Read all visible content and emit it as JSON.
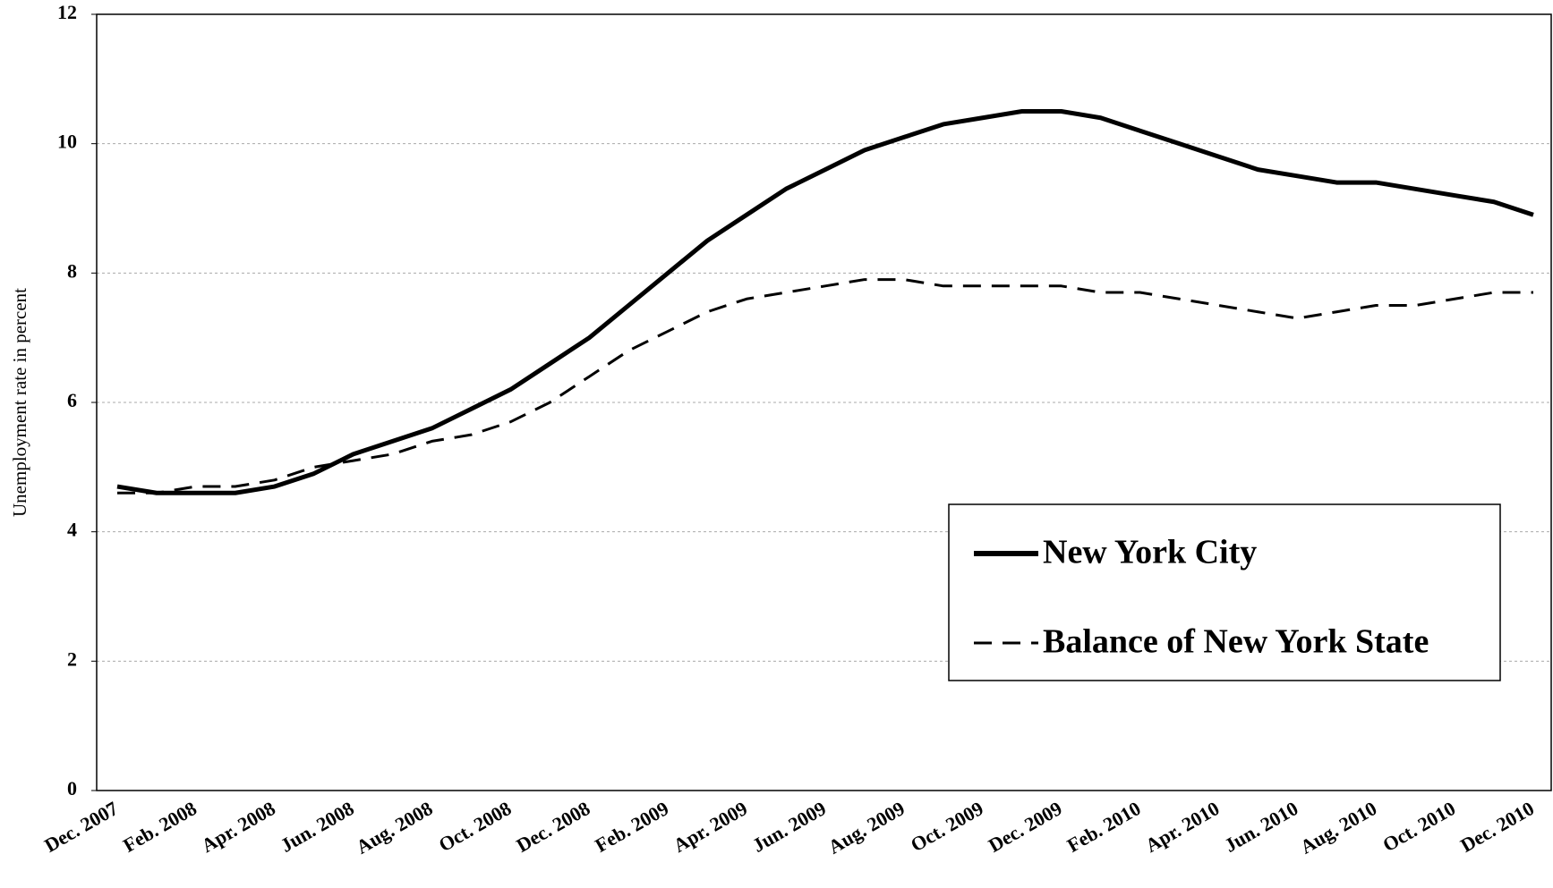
{
  "chart_data": {
    "type": "line",
    "ylabel": "Unemployment rate in percent",
    "categories": [
      "Dec. 2007",
      null,
      "Feb. 2008",
      null,
      "Apr. 2008",
      null,
      "Jun. 2008",
      null,
      "Aug. 2008",
      null,
      "Oct. 2008",
      null,
      "Dec. 2008",
      null,
      "Feb. 2009",
      null,
      "Apr. 2009",
      null,
      "Jun. 2009",
      null,
      "Aug. 2009",
      null,
      "Oct. 2009",
      null,
      "Dec. 2009",
      null,
      "Feb. 2010",
      null,
      "Apr. 2010",
      null,
      "Jun. 2010",
      null,
      "Aug. 2010",
      null,
      "Oct. 2010",
      null,
      "Dec. 2010"
    ],
    "series": [
      {
        "name": "New York City",
        "color": "#000000",
        "style": "solid",
        "values": [
          4.7,
          4.6,
          4.6,
          4.6,
          4.7,
          4.9,
          5.2,
          5.4,
          5.6,
          5.9,
          6.2,
          6.6,
          7.0,
          7.5,
          8.0,
          8.5,
          8.9,
          9.3,
          9.6,
          9.9,
          10.1,
          10.3,
          10.4,
          10.5,
          10.5,
          10.4,
          10.2,
          10.0,
          9.8,
          9.6,
          9.5,
          9.4,
          9.4,
          9.3,
          9.2,
          9.1,
          8.9
        ]
      },
      {
        "name": "Balance of New York State",
        "color": "#000000",
        "style": "dashed",
        "values": [
          4.6,
          4.6,
          4.7,
          4.7,
          4.8,
          5.0,
          5.1,
          5.2,
          5.4,
          5.5,
          5.7,
          6.0,
          6.4,
          6.8,
          7.1,
          7.4,
          7.6,
          7.7,
          7.8,
          7.9,
          7.9,
          7.8,
          7.8,
          7.8,
          7.8,
          7.7,
          7.7,
          7.6,
          7.5,
          7.4,
          7.3,
          7.4,
          7.5,
          7.5,
          7.6,
          7.7,
          7.7
        ]
      }
    ],
    "ylim": [
      0,
      12
    ],
    "yticks": [
      0,
      2,
      4,
      6,
      8,
      10,
      12
    ],
    "grid": true,
    "legend": "lower right"
  }
}
